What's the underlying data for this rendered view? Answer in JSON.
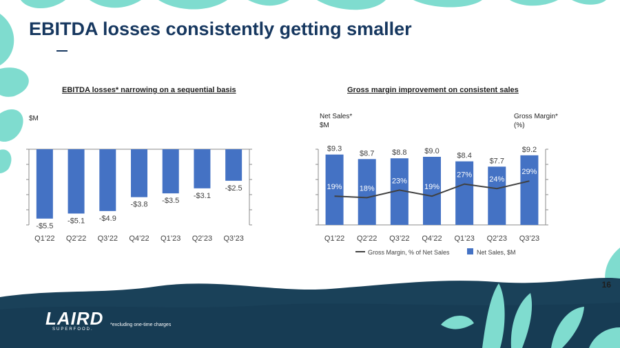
{
  "title": "EBITDA losses consistently getting smaller",
  "footnote": "*excluding one-time charges",
  "page_number": "16",
  "brand": {
    "name": "LAIRD",
    "tagline": "SUPERFOOD."
  },
  "colors": {
    "bar": "#4472c4",
    "line": "#404040",
    "title": "#16375f",
    "teal": "#7fdccf",
    "navy": "#1a4159"
  },
  "chart_data": [
    {
      "type": "bar",
      "title": "EBITDA losses* narrowing on a sequential basis",
      "ylabel": "$M",
      "categories": [
        "Q1’22",
        "Q2’22",
        "Q3’22",
        "Q4’22",
        "Q1’23",
        "Q2’23",
        "Q3’23"
      ],
      "values": [
        -5.5,
        -5.1,
        -4.9,
        -3.8,
        -3.5,
        -3.1,
        -2.5
      ],
      "value_labels": [
        "-$5.5",
        "-$5.1",
        "-$4.9",
        "-$3.8",
        "-$3.5",
        "-$3.1",
        "-$2.5"
      ],
      "ylim": [
        -6,
        0
      ]
    },
    {
      "type": "bar+line",
      "title": "Gross margin improvement on consistent sales",
      "ylabel_left": "Net Sales*\n$M",
      "ylabel_right": "Gross Margin*\n(%)",
      "categories": [
        "Q1’22",
        "Q2’22",
        "Q3’22",
        "Q4’22",
        "Q1’23",
        "Q2’23",
        "Q3’23"
      ],
      "series": [
        {
          "name": "Net Sales, $M",
          "type": "bar",
          "values": [
            9.3,
            8.7,
            8.8,
            9.0,
            8.4,
            7.7,
            9.2
          ],
          "labels": [
            "$9.3",
            "$8.7",
            "$8.8",
            "$9.0",
            "$8.4",
            "$7.7",
            "$9.2"
          ]
        },
        {
          "name": "Gross Margin, % of Net Sales",
          "type": "line",
          "values": [
            19,
            18,
            23,
            19,
            27,
            24,
            29
          ],
          "labels": [
            "19%",
            "18%",
            "23%",
            "19%",
            "27%",
            "24%",
            "29%"
          ]
        }
      ],
      "ylim_left": [
        0,
        10
      ],
      "ylim_right": [
        0,
        50
      ],
      "legend": [
        "Gross Margin, % of Net Sales",
        "Net Sales, $M"
      ]
    }
  ]
}
